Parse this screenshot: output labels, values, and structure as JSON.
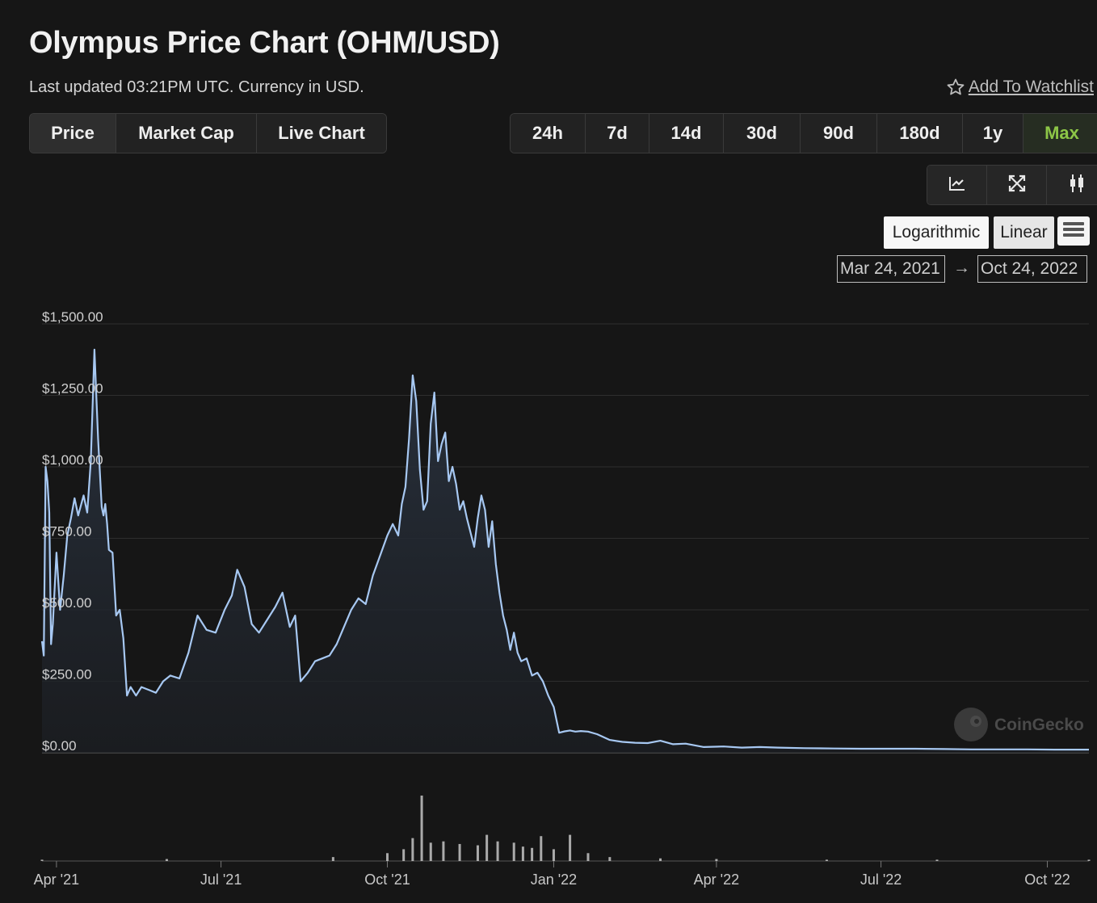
{
  "header": {
    "title": "Olympus Price Chart (OHM/USD)",
    "subtitle": "Last updated 03:21PM UTC. Currency in USD.",
    "watchlist_label": "Add To Watchlist"
  },
  "view_tabs": [
    {
      "label": "Price",
      "active": true
    },
    {
      "label": "Market Cap",
      "active": false
    },
    {
      "label": "Live Chart",
      "active": false
    }
  ],
  "range_tabs": [
    {
      "label": "24h",
      "active": false
    },
    {
      "label": "7d",
      "active": false
    },
    {
      "label": "14d",
      "active": false
    },
    {
      "label": "30d",
      "active": false
    },
    {
      "label": "90d",
      "active": false
    },
    {
      "label": "180d",
      "active": false
    },
    {
      "label": "1y",
      "active": false
    },
    {
      "label": "Max",
      "active": true
    }
  ],
  "chart_tools": [
    {
      "icon": "line-chart-icon"
    },
    {
      "icon": "fullscreen-icon"
    },
    {
      "icon": "candlestick-icon"
    }
  ],
  "scale": {
    "logarithmic_label": "Logarithmic",
    "linear_label": "Linear",
    "selected": "Linear"
  },
  "date_range": {
    "from": "Mar 24, 2021",
    "to": "Oct 24, 2022",
    "arrow": "→"
  },
  "watermark": "CoinGecko",
  "colors": {
    "line": "#a7c8f2",
    "accent": "#8dc647",
    "background": "#161616"
  },
  "chart_data": {
    "type": "area",
    "title": "Olympus Price Chart (OHM/USD)",
    "y_axis": {
      "min": 0,
      "max": 1500,
      "ticks": [
        0,
        250,
        500,
        750,
        1000,
        1250,
        1500
      ],
      "tick_labels": [
        "$0.00",
        "$250.00",
        "$500.00",
        "$750.00",
        "$1,000.00",
        "$1,250.00",
        "$1,500.00"
      ]
    },
    "x_axis": {
      "start": "2021-03-24",
      "end": "2022-10-24",
      "tick_labels": [
        "Apr '21",
        "Jul '21",
        "Oct '21",
        "Jan '22",
        "Apr '22",
        "Jul '22",
        "Oct '22"
      ],
      "tick_dates": [
        "2021-04-01",
        "2021-07-01",
        "2021-10-01",
        "2022-01-01",
        "2022-04-01",
        "2022-07-01",
        "2022-10-01"
      ]
    },
    "grid": true,
    "series": [
      {
        "name": "Price",
        "dates": [
          "2021-03-24",
          "2021-03-25",
          "2021-03-26",
          "2021-03-27",
          "2021-03-28",
          "2021-03-29",
          "2021-03-30",
          "2021-04-01",
          "2021-04-03",
          "2021-04-05",
          "2021-04-07",
          "2021-04-09",
          "2021-04-11",
          "2021-04-13",
          "2021-04-16",
          "2021-04-18",
          "2021-04-20",
          "2021-04-22",
          "2021-04-24",
          "2021-04-26",
          "2021-04-27",
          "2021-04-28",
          "2021-04-29",
          "2021-04-30",
          "2021-05-02",
          "2021-05-04",
          "2021-05-06",
          "2021-05-08",
          "2021-05-10",
          "2021-05-12",
          "2021-05-15",
          "2021-05-18",
          "2021-05-22",
          "2021-05-26",
          "2021-05-30",
          "2021-06-03",
          "2021-06-08",
          "2021-06-13",
          "2021-06-18",
          "2021-06-23",
          "2021-06-28",
          "2021-07-03",
          "2021-07-07",
          "2021-07-10",
          "2021-07-14",
          "2021-07-18",
          "2021-07-22",
          "2021-07-27",
          "2021-07-31",
          "2021-08-04",
          "2021-08-08",
          "2021-08-11",
          "2021-08-14",
          "2021-08-18",
          "2021-08-22",
          "2021-08-26",
          "2021-08-30",
          "2021-09-03",
          "2021-09-07",
          "2021-09-11",
          "2021-09-15",
          "2021-09-19",
          "2021-09-23",
          "2021-09-27",
          "2021-10-01",
          "2021-10-04",
          "2021-10-07",
          "2021-10-09",
          "2021-10-11",
          "2021-10-13",
          "2021-10-15",
          "2021-10-17",
          "2021-10-19",
          "2021-10-21",
          "2021-10-23",
          "2021-10-25",
          "2021-10-27",
          "2021-10-29",
          "2021-10-31",
          "2021-11-02",
          "2021-11-04",
          "2021-11-06",
          "2021-11-08",
          "2021-11-10",
          "2021-11-12",
          "2021-11-14",
          "2021-11-16",
          "2021-11-18",
          "2021-11-20",
          "2021-11-22",
          "2021-11-24",
          "2021-11-26",
          "2021-11-28",
          "2021-11-30",
          "2021-12-02",
          "2021-12-04",
          "2021-12-06",
          "2021-12-08",
          "2021-12-10",
          "2021-12-12",
          "2021-12-14",
          "2021-12-17",
          "2021-12-20",
          "2021-12-23",
          "2021-12-26",
          "2021-12-29",
          "2022-01-01",
          "2022-01-04",
          "2022-01-07",
          "2022-01-10",
          "2022-01-13",
          "2022-01-16",
          "2022-01-20",
          "2022-01-25",
          "2022-02-01",
          "2022-02-08",
          "2022-02-15",
          "2022-02-22",
          "2022-03-01",
          "2022-03-08",
          "2022-03-15",
          "2022-03-25",
          "2022-04-05",
          "2022-04-15",
          "2022-04-25",
          "2022-05-05",
          "2022-05-20",
          "2022-06-05",
          "2022-06-20",
          "2022-07-05",
          "2022-07-20",
          "2022-08-05",
          "2022-08-20",
          "2022-09-05",
          "2022-09-20",
          "2022-10-05",
          "2022-10-24"
        ],
        "values": [
          390,
          340,
          1000,
          950,
          840,
          380,
          450,
          700,
          500,
          620,
          760,
          820,
          890,
          830,
          900,
          840,
          1020,
          1410,
          1100,
          860,
          830,
          870,
          800,
          710,
          700,
          480,
          500,
          400,
          200,
          230,
          200,
          230,
          220,
          210,
          250,
          270,
          260,
          350,
          480,
          430,
          420,
          500,
          550,
          640,
          580,
          450,
          420,
          470,
          510,
          560,
          440,
          480,
          250,
          280,
          320,
          330,
          340,
          380,
          440,
          500,
          540,
          520,
          620,
          690,
          760,
          800,
          760,
          870,
          930,
          1100,
          1320,
          1230,
          990,
          850,
          880,
          1150,
          1260,
          1020,
          1080,
          1120,
          950,
          1000,
          940,
          850,
          880,
          820,
          770,
          720,
          820,
          900,
          850,
          720,
          810,
          660,
          560,
          480,
          430,
          360,
          420,
          350,
          320,
          330,
          270,
          280,
          250,
          200,
          160,
          70,
          75,
          78,
          74,
          76,
          74,
          65,
          45,
          38,
          35,
          34,
          42,
          30,
          32,
          20,
          22,
          18,
          20,
          18,
          16,
          15,
          14,
          14,
          14,
          13,
          12,
          12,
          12,
          11,
          11
        ]
      }
    ],
    "volume": {
      "dates": [
        "2021-03-24",
        "2021-06-01",
        "2021-09-01",
        "2021-10-01",
        "2021-10-10",
        "2021-10-15",
        "2021-10-20",
        "2021-10-25",
        "2021-11-01",
        "2021-11-10",
        "2021-11-20",
        "2021-11-25",
        "2021-12-01",
        "2021-12-10",
        "2021-12-15",
        "2021-12-20",
        "2021-12-25",
        "2022-01-01",
        "2022-01-10",
        "2022-01-20",
        "2022-02-01",
        "2022-03-01",
        "2022-04-01",
        "2022-06-01",
        "2022-08-01",
        "2022-10-24"
      ],
      "values": [
        2,
        3,
        6,
        12,
        18,
        35,
        100,
        28,
        30,
        26,
        24,
        40,
        30,
        28,
        22,
        20,
        38,
        18,
        40,
        12,
        6,
        4,
        3,
        2,
        2,
        2
      ]
    }
  }
}
